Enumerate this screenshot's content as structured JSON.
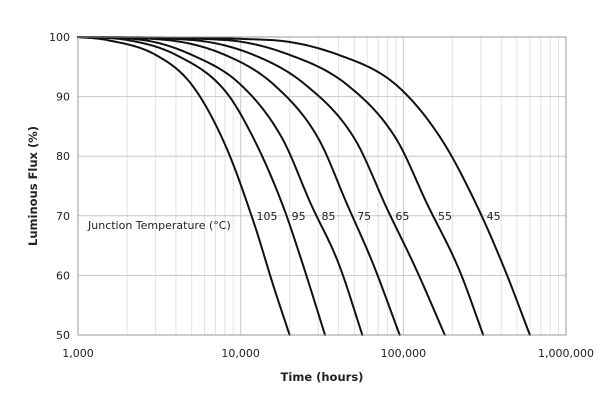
{
  "chart_data": {
    "type": "line",
    "xlabel": "Time (hours)",
    "ylabel": "Luminous Flux (%)",
    "xscale": "log",
    "xlim": [
      1000,
      1000000
    ],
    "ylim": [
      50,
      100
    ],
    "grid": true,
    "x_tick_labels": [
      "1,000",
      "10,000",
      "100,000",
      "1,000,000"
    ],
    "y_tick_labels": [
      "50",
      "60",
      "70",
      "80",
      "90",
      "100"
    ],
    "annotation": "Junction Temperature (°C)",
    "series": [
      {
        "name": "105",
        "x": [
          1000,
          1500,
          3000,
          5000,
          8000,
          12000,
          16000,
          20000
        ],
        "y": [
          100,
          99.5,
          97,
          92,
          82,
          69,
          58,
          50
        ]
      },
      {
        "name": "95",
        "x": [
          1000,
          2000,
          4000,
          8000,
          12000,
          18000,
          24000,
          33000
        ],
        "y": [
          100,
          99.5,
          97,
          91,
          83,
          72,
          62,
          50
        ]
      },
      {
        "name": "85",
        "x": [
          1000,
          2500,
          5000,
          10000,
          18000,
          27000,
          40000,
          56000
        ],
        "y": [
          100,
          99.5,
          97,
          92,
          83,
          72,
          62,
          50
        ]
      },
      {
        "name": "75",
        "x": [
          1000,
          3500,
          8000,
          16000,
          30000,
          45000,
          65000,
          95000
        ],
        "y": [
          100,
          99.5,
          97,
          92,
          83,
          72,
          62,
          50
        ]
      },
      {
        "name": "65",
        "x": [
          1000,
          5000,
          12000,
          25000,
          50000,
          80000,
          120000,
          180000
        ],
        "y": [
          100,
          99.5,
          97,
          92,
          83,
          71,
          61,
          50
        ]
      },
      {
        "name": "55",
        "x": [
          1000,
          8000,
          20000,
          45000,
          90000,
          140000,
          220000,
          310000
        ],
        "y": [
          100,
          99.5,
          97,
          92,
          83,
          72,
          61,
          50
        ]
      },
      {
        "name": "45",
        "x": [
          1000,
          15000,
          40000,
          90000,
          170000,
          280000,
          420000,
          600000
        ],
        "y": [
          100,
          99.5,
          97,
          92,
          83,
          72,
          61,
          50
        ]
      }
    ]
  }
}
